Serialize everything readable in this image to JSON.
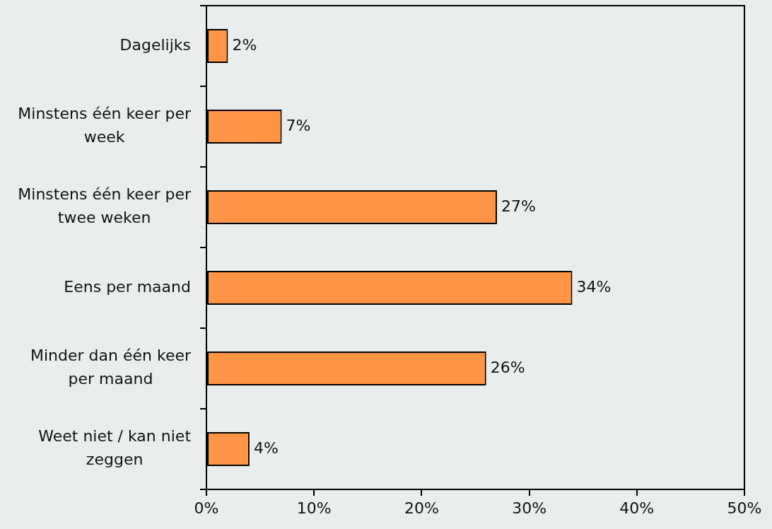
{
  "chart_data": {
    "type": "bar",
    "orientation": "horizontal",
    "categories": [
      "Dagelijks",
      "Minstens één keer per week",
      "Minstens één keer per twee weken",
      "Eens per maand",
      "Minder dan één keer per maand",
      "Weet niet / kan niet zeggen"
    ],
    "values": [
      2,
      7,
      27,
      34,
      26,
      4
    ],
    "color": "#ff9444",
    "value_labels": [
      "2%",
      "7%",
      "27%",
      "34%",
      "26%",
      "4%"
    ],
    "xlim": [
      0,
      50
    ],
    "xticks": [
      {
        "value": 0,
        "label": "0%"
      },
      {
        "value": 10,
        "label": "10%"
      },
      {
        "value": 20,
        "label": "20%"
      },
      {
        "value": 30,
        "label": "30%"
      },
      {
        "value": 40,
        "label": "40%"
      },
      {
        "value": 50,
        "label": "50%"
      }
    ]
  }
}
